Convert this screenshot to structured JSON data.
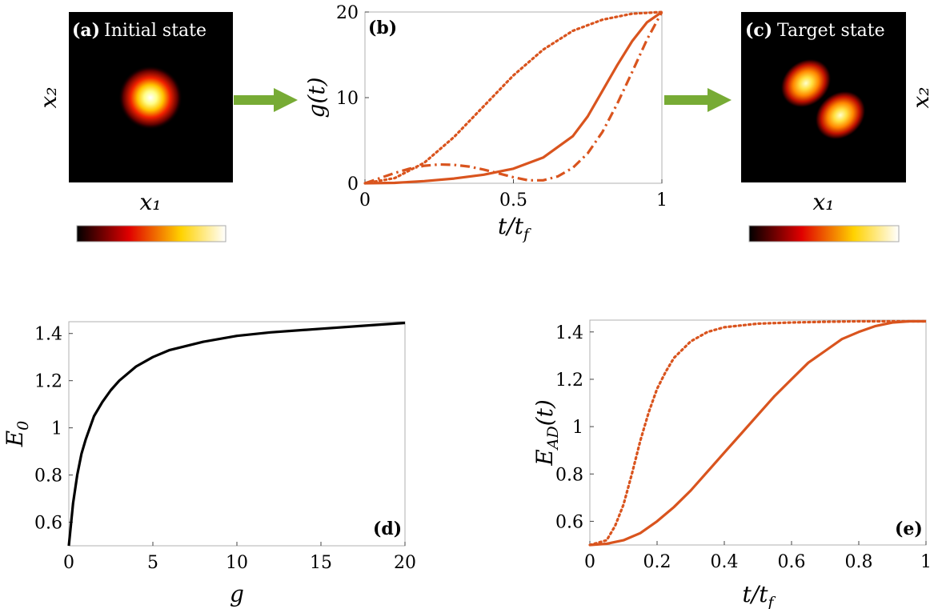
{
  "colors": {
    "orange": "#d9541e",
    "black": "#000000",
    "arrow_green": "#77ab35"
  },
  "panel_a": {
    "label": "(a)",
    "title": "Initial state",
    "xlabel": "x₁",
    "ylabel": "x₂",
    "colorbar_ticks": [
      "0",
      "0.05",
      "0.1",
      "0.15"
    ],
    "colorbar_range": [
      0,
      0.16
    ]
  },
  "panel_c": {
    "label": "(c)",
    "title": "Target state",
    "xlabel": "x₁",
    "ylabel": "x₂",
    "colorbar_ticks": [
      "0",
      "0.05",
      "0.1"
    ],
    "colorbar_range": [
      0,
      0.11
    ]
  },
  "chart_data": [
    {
      "panel": "b",
      "label": "(b)",
      "type": "line",
      "xlabel": "t/t_f",
      "ylabel": "g(t)",
      "xlim": [
        0,
        1
      ],
      "ylim": [
        0,
        20
      ],
      "xticks": [
        0,
        0.5,
        1
      ],
      "xtick_labels": [
        "0",
        "0.5",
        "1"
      ],
      "yticks": [
        0,
        10,
        20
      ],
      "ytick_labels": [
        "0",
        "10",
        "20"
      ],
      "grid": false,
      "series": [
        {
          "style": "solid",
          "x": [
            0,
            0.1,
            0.2,
            0.3,
            0.4,
            0.5,
            0.6,
            0.7,
            0.75,
            0.8,
            0.85,
            0.9,
            0.95,
            1
          ],
          "y": [
            0,
            0.05,
            0.25,
            0.55,
            1.0,
            1.7,
            3.0,
            5.5,
            7.8,
            10.8,
            13.8,
            16.6,
            18.8,
            20
          ]
        },
        {
          "style": "dotted",
          "x": [
            0,
            0.1,
            0.2,
            0.3,
            0.4,
            0.5,
            0.6,
            0.7,
            0.8,
            0.9,
            1
          ],
          "y": [
            0,
            0.6,
            2.4,
            5.4,
            9.0,
            12.6,
            15.6,
            17.8,
            19.1,
            19.8,
            20
          ]
        },
        {
          "style": "dashdot",
          "x": [
            0,
            0.05,
            0.1,
            0.15,
            0.2,
            0.25,
            0.3,
            0.35,
            0.4,
            0.45,
            0.5,
            0.55,
            0.6,
            0.65,
            0.7,
            0.75,
            0.8,
            0.85,
            0.9,
            0.95,
            1
          ],
          "y": [
            0,
            0.6,
            1.2,
            1.7,
            2.05,
            2.2,
            2.15,
            1.95,
            1.6,
            1.15,
            0.7,
            0.35,
            0.35,
            0.8,
            1.8,
            3.5,
            6.0,
            9.3,
            13.0,
            16.8,
            20
          ]
        }
      ]
    },
    {
      "panel": "d",
      "label": "(d)",
      "type": "line",
      "xlabel": "g",
      "ylabel": "E_0",
      "xlim": [
        0,
        20
      ],
      "ylim": [
        0.5,
        1.45
      ],
      "xticks": [
        0,
        5,
        10,
        15,
        20
      ],
      "xtick_labels": [
        "0",
        "5",
        "10",
        "15",
        "20"
      ],
      "yticks": [
        0.6,
        0.8,
        1.0,
        1.2,
        1.4
      ],
      "ytick_labels": [
        "0.6",
        "0.8",
        "1",
        "1.2",
        "1.4"
      ],
      "grid": false,
      "series": [
        {
          "style": "solid",
          "x": [
            0,
            0.25,
            0.5,
            0.75,
            1,
            1.5,
            2,
            2.5,
            3,
            4,
            5,
            6,
            8,
            10,
            12,
            15,
            18,
            20
          ],
          "y": [
            0.5,
            0.68,
            0.8,
            0.89,
            0.95,
            1.05,
            1.11,
            1.16,
            1.2,
            1.26,
            1.3,
            1.33,
            1.365,
            1.39,
            1.405,
            1.42,
            1.435,
            1.445
          ]
        }
      ]
    },
    {
      "panel": "e",
      "label": "(e)",
      "type": "line",
      "xlabel": "t/t_f",
      "ylabel": "E_AD(t)",
      "xlim": [
        0,
        1
      ],
      "ylim": [
        0.5,
        1.45
      ],
      "xticks": [
        0,
        0.2,
        0.4,
        0.6,
        0.8,
        1
      ],
      "xtick_labels": [
        "0",
        "0.2",
        "0.4",
        "0.6",
        "0.8",
        "1"
      ],
      "yticks": [
        0.6,
        0.8,
        1.0,
        1.2,
        1.4
      ],
      "ytick_labels": [
        "0.6",
        "0.8",
        "1",
        "1.2",
        "1.4"
      ],
      "grid": false,
      "series": [
        {
          "style": "solid",
          "x": [
            0,
            0.05,
            0.1,
            0.15,
            0.2,
            0.25,
            0.3,
            0.35,
            0.4,
            0.45,
            0.5,
            0.55,
            0.6,
            0.65,
            0.7,
            0.75,
            0.8,
            0.85,
            0.9,
            0.95,
            1
          ],
          "y": [
            0.5,
            0.505,
            0.52,
            0.55,
            0.6,
            0.66,
            0.73,
            0.81,
            0.89,
            0.97,
            1.05,
            1.13,
            1.2,
            1.27,
            1.32,
            1.37,
            1.4,
            1.425,
            1.44,
            1.445,
            1.445
          ]
        },
        {
          "style": "dotted",
          "x": [
            0,
            0.05,
            0.075,
            0.1,
            0.125,
            0.15,
            0.175,
            0.2,
            0.225,
            0.25,
            0.3,
            0.35,
            0.4,
            0.5,
            0.6,
            0.7,
            0.8,
            0.9,
            1
          ],
          "y": [
            0.5,
            0.52,
            0.58,
            0.67,
            0.8,
            0.94,
            1.06,
            1.16,
            1.23,
            1.29,
            1.36,
            1.4,
            1.42,
            1.435,
            1.44,
            1.443,
            1.445,
            1.445,
            1.445
          ]
        }
      ]
    }
  ]
}
